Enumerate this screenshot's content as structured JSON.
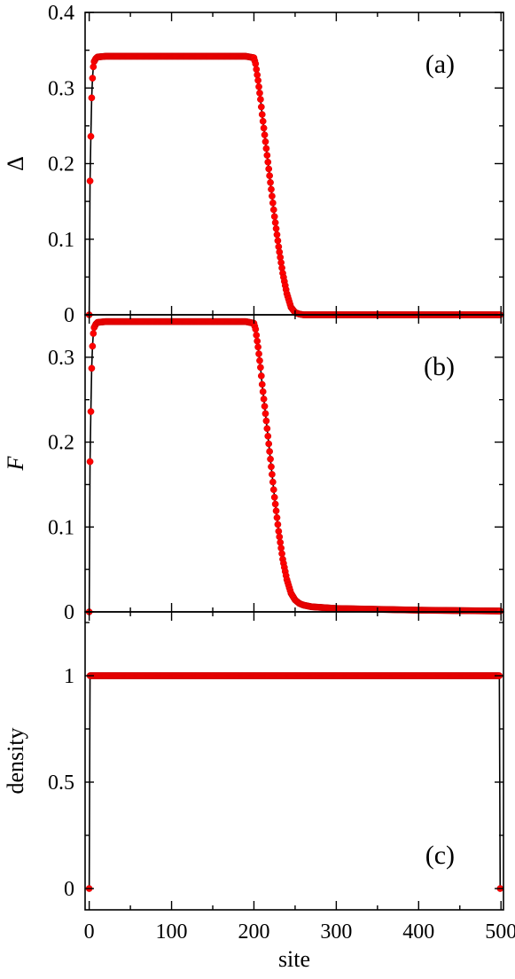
{
  "colors": {
    "marker": "#ff0000",
    "marker_edge": "#cc0000",
    "line": "#000000",
    "frame": "#000000"
  },
  "chart_data": [
    {
      "type": "scatter",
      "panel_label": "(a)",
      "ylabel": "Δ",
      "ylabel_italic": false,
      "xlim": [
        -5,
        503
      ],
      "ylim": [
        0,
        0.4
      ],
      "yticks": [
        0,
        0.1,
        0.2,
        0.3,
        0.4
      ],
      "ytick_labels": [
        "0",
        "0.1",
        "0.2",
        "0.3",
        "0.4"
      ],
      "show_x_tick_labels": false,
      "grid": false,
      "legend": "none",
      "series": [
        {
          "x": [
            0,
            1,
            2,
            3,
            4,
            5,
            6,
            8,
            10,
            20,
            50,
            100,
            150,
            190,
            200,
            202,
            205,
            208,
            210,
            215,
            220,
            225,
            230,
            235,
            240,
            245,
            250,
            255,
            260,
            300,
            400,
            499
          ],
          "y": [
            0,
            0.177,
            0.236,
            0.287,
            0.313,
            0.328,
            0.335,
            0.339,
            0.341,
            0.342,
            0.342,
            0.342,
            0.342,
            0.342,
            0.34,
            0.332,
            0.31,
            0.285,
            0.265,
            0.22,
            0.175,
            0.13,
            0.09,
            0.055,
            0.028,
            0.01,
            0.003,
            0.001,
            0,
            0,
            0,
            0
          ]
        }
      ]
    },
    {
      "type": "scatter",
      "panel_label": "(b)",
      "ylabel": "F",
      "ylabel_italic": true,
      "xlim": [
        -5,
        503
      ],
      "ylim": [
        0,
        0.35
      ],
      "yticks": [
        0,
        0.1,
        0.2,
        0.3
      ],
      "ytick_labels": [
        "0",
        "0.1",
        "0.2",
        "0.3"
      ],
      "show_x_tick_labels": false,
      "grid": false,
      "legend": "none",
      "series": [
        {
          "x": [
            0,
            1,
            2,
            3,
            4,
            5,
            6,
            8,
            10,
            20,
            50,
            100,
            150,
            190,
            200,
            202,
            205,
            208,
            210,
            215,
            220,
            225,
            230,
            235,
            240,
            245,
            250,
            255,
            260,
            270,
            300,
            350,
            400,
            450,
            499
          ],
          "y": [
            0,
            0.177,
            0.236,
            0.287,
            0.313,
            0.328,
            0.335,
            0.339,
            0.341,
            0.342,
            0.342,
            0.342,
            0.342,
            0.342,
            0.34,
            0.333,
            0.312,
            0.288,
            0.268,
            0.225,
            0.18,
            0.135,
            0.095,
            0.062,
            0.038,
            0.022,
            0.014,
            0.01,
            0.008,
            0.006,
            0.004,
            0.003,
            0.002,
            0.0015,
            0.001
          ]
        }
      ]
    },
    {
      "type": "scatter",
      "panel_label": "(c)",
      "ylabel": "density",
      "ylabel_italic": false,
      "xlabel": "site",
      "xlim": [
        -5,
        503
      ],
      "ylim": [
        -0.1,
        1.3
      ],
      "yticks": [
        0,
        0.5,
        1
      ],
      "ytick_labels": [
        "0",
        "0.5",
        "1"
      ],
      "xticks": [
        0,
        100,
        200,
        300,
        400,
        500
      ],
      "xtick_labels": [
        "0",
        "100",
        "200",
        "300",
        "400",
        "500"
      ],
      "show_x_tick_labels": true,
      "grid": false,
      "legend": "none",
      "series": [
        {
          "x": [
            0,
            1,
            2,
            5,
            10,
            50,
            100,
            150,
            200,
            250,
            300,
            350,
            400,
            450,
            495,
            498,
            499
          ],
          "y": [
            0,
            1,
            1,
            1,
            1,
            1,
            1,
            1,
            1,
            1,
            1,
            1,
            1,
            1,
            1,
            1,
            0
          ]
        }
      ]
    }
  ]
}
